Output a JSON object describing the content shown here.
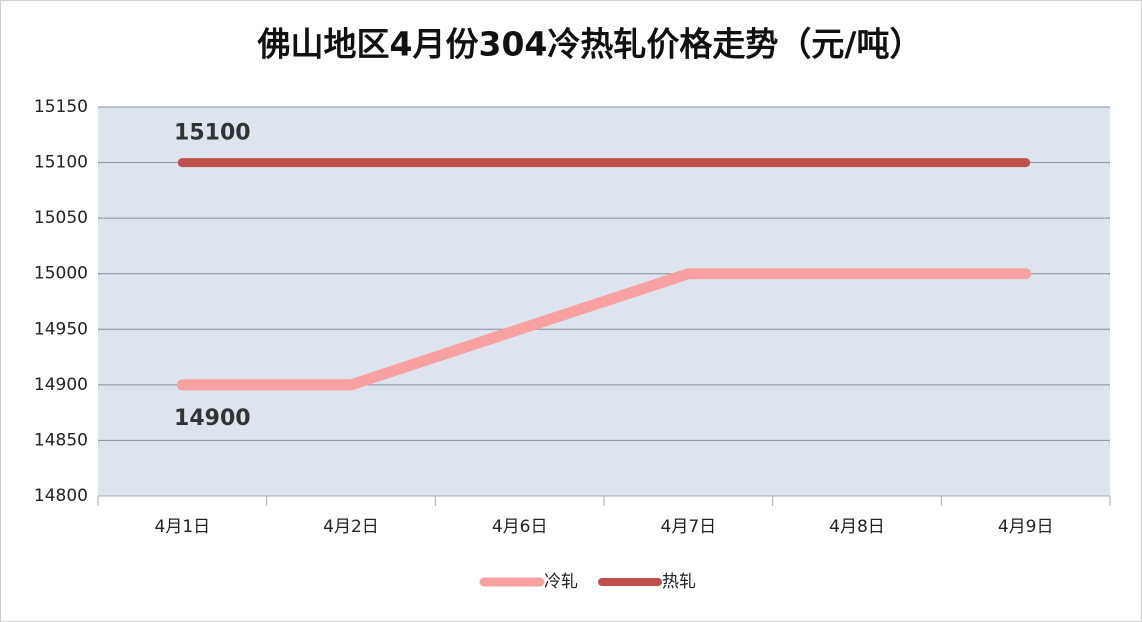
{
  "chart_data": {
    "type": "line",
    "title": "佛山地区4月份304冷热轧价格走势（元/吨）",
    "categories": [
      "4月1日",
      "4月2日",
      "4月6日",
      "4月7日",
      "4月8日",
      "4月9日"
    ],
    "series": [
      {
        "name": "冷轧",
        "color": "#f7a1a1",
        "values": [
          14900,
          14900,
          14950,
          15000,
          15000,
          15000
        ],
        "data_labels": [
          0
        ],
        "label_side": "below"
      },
      {
        "name": "热轧",
        "color": "#c0504d",
        "values": [
          15100,
          15100,
          15100,
          15100,
          15100,
          15100
        ],
        "data_labels": [
          0
        ],
        "label_side": "above"
      }
    ],
    "ylim": [
      14800,
      15150
    ],
    "yticks": [
      14800,
      14850,
      14900,
      14950,
      15000,
      15050,
      15100,
      15150
    ],
    "grid": true,
    "legend": "bottom",
    "plot_background": "#dde4ee"
  }
}
